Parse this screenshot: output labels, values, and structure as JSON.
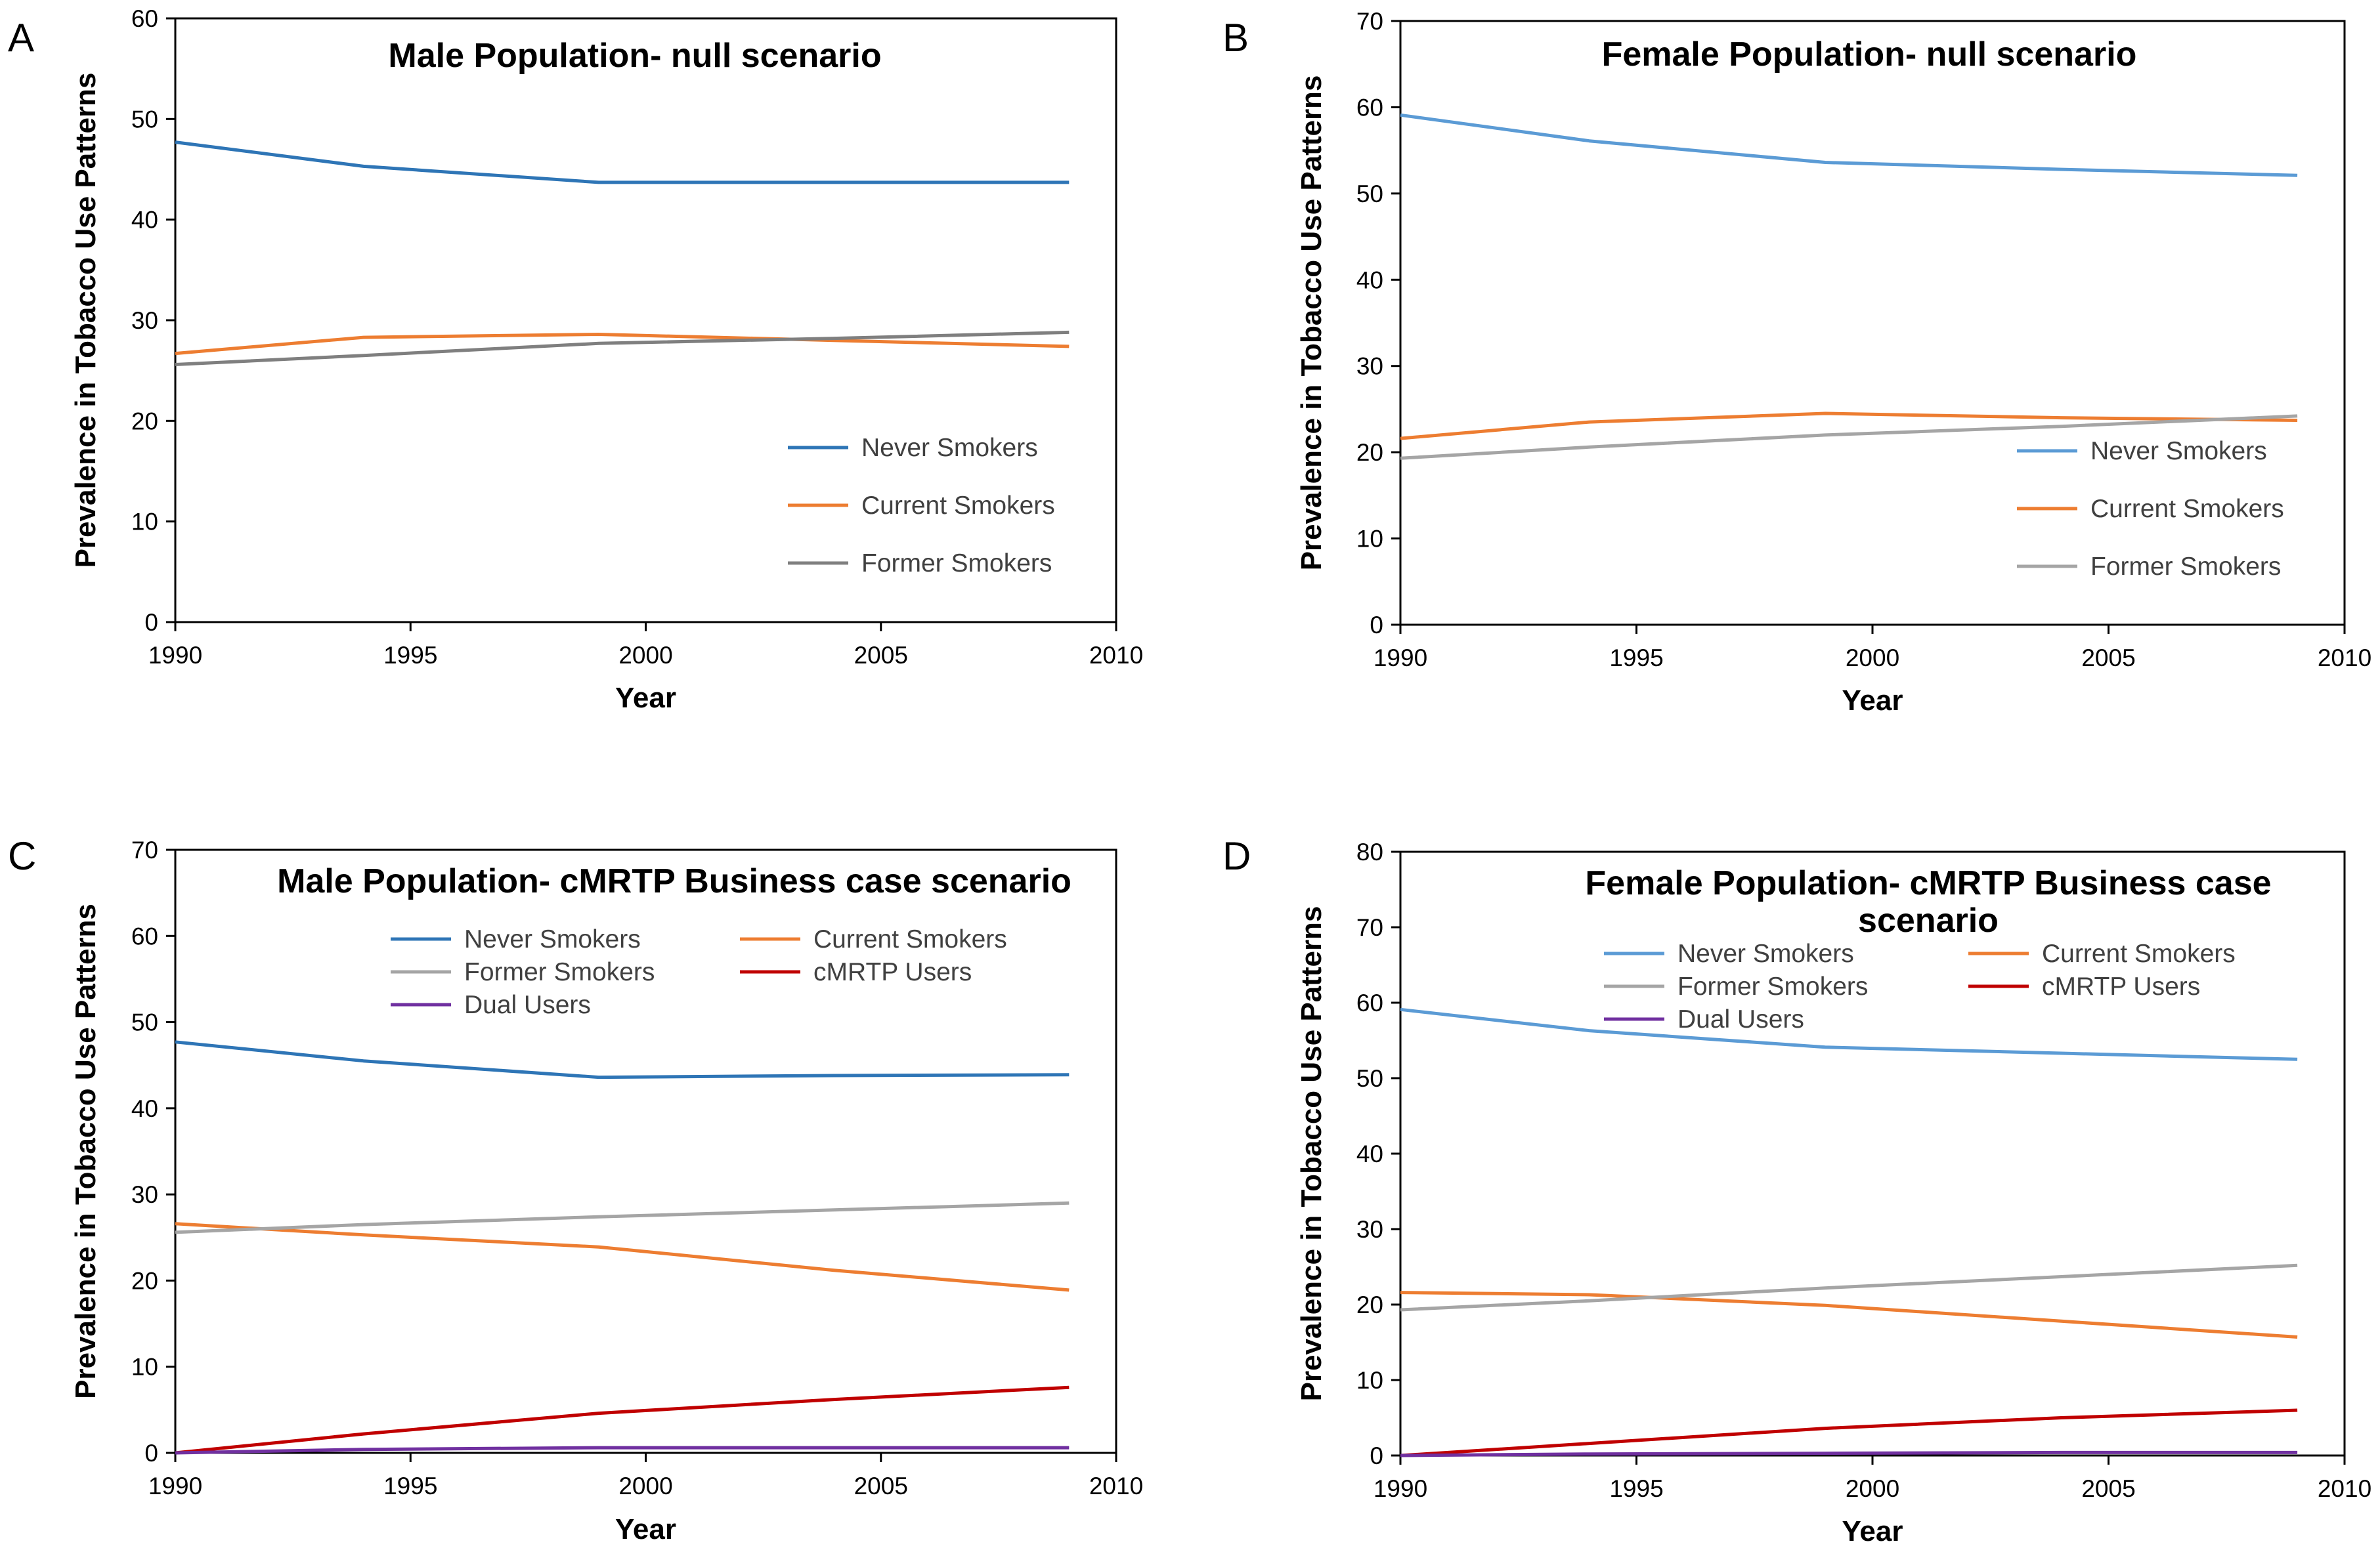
{
  "chart_data": [
    {
      "panel": "A",
      "type": "line",
      "title": "Male Population- null scenario",
      "xlabel": "Year",
      "ylabel": "Prevalence in Tobacco Use Patterns",
      "xlim": [
        1990,
        2010
      ],
      "ylim": [
        0,
        60
      ],
      "xticks": [
        1990,
        1995,
        2000,
        2005,
        2010
      ],
      "yticks": [
        0,
        10,
        20,
        30,
        40,
        50,
        60
      ],
      "x": [
        1990,
        1994,
        1999,
        2004,
        2009
      ],
      "series": [
        {
          "name": "Never Smokers",
          "color": "#2E75B6",
          "values": [
            47.7,
            45.3,
            43.7,
            43.7,
            43.7
          ]
        },
        {
          "name": "Current Smokers",
          "color": "#ED7D31",
          "values": [
            26.7,
            28.3,
            28.6,
            28.0,
            27.4
          ]
        },
        {
          "name": "Former Smokers",
          "color": "#7F7F7F",
          "values": [
            25.6,
            26.5,
            27.7,
            28.2,
            28.8
          ]
        }
      ]
    },
    {
      "panel": "B",
      "type": "line",
      "title": "Female Population- null scenario",
      "xlabel": "Year",
      "ylabel": "Prevalence in Tobacco Use Patterns",
      "xlim": [
        1990,
        2010
      ],
      "ylim": [
        0,
        70
      ],
      "xticks": [
        1990,
        1995,
        2000,
        2005,
        2010
      ],
      "yticks": [
        0,
        10,
        20,
        30,
        40,
        50,
        60,
        70
      ],
      "x": [
        1990,
        1994,
        1999,
        2004,
        2009
      ],
      "series": [
        {
          "name": "Never Smokers",
          "color": "#5B9BD5",
          "values": [
            59.1,
            56.1,
            53.6,
            52.8,
            52.1
          ]
        },
        {
          "name": "Current Smokers",
          "color": "#ED7D31",
          "values": [
            21.6,
            23.5,
            24.5,
            24.0,
            23.7
          ]
        },
        {
          "name": "Former Smokers",
          "color": "#A5A5A5",
          "values": [
            19.3,
            20.6,
            22.0,
            23.0,
            24.2
          ]
        }
      ]
    },
    {
      "panel": "C",
      "type": "line",
      "title": "Male Population- cMRTP Business case scenario",
      "xlabel": "Year",
      "ylabel": "Prevalence in Tobacco Use Patterns",
      "xlim": [
        1990,
        2010
      ],
      "ylim": [
        0,
        70
      ],
      "xticks": [
        1990,
        1995,
        2000,
        2005,
        2010
      ],
      "yticks": [
        0,
        10,
        20,
        30,
        40,
        50,
        60,
        70
      ],
      "x": [
        1990,
        1994,
        1999,
        2004,
        2009
      ],
      "series": [
        {
          "name": "Never Smokers",
          "color": "#2E75B6",
          "values": [
            47.7,
            45.5,
            43.6,
            43.8,
            43.9
          ]
        },
        {
          "name": "Current Smokers",
          "color": "#ED7D31",
          "values": [
            26.6,
            25.3,
            23.9,
            21.2,
            18.9
          ]
        },
        {
          "name": "Former Smokers",
          "color": "#A5A5A5",
          "values": [
            25.6,
            26.5,
            27.4,
            28.2,
            29.0
          ]
        },
        {
          "name": "cMRTP Users",
          "color": "#C00000",
          "values": [
            0.0,
            2.2,
            4.6,
            6.2,
            7.6
          ]
        },
        {
          "name": "Dual Users",
          "color": "#7030A0",
          "values": [
            0.0,
            0.4,
            0.6,
            0.6,
            0.6
          ]
        }
      ]
    },
    {
      "panel": "D",
      "type": "line",
      "title": "Female Population- cMRTP Business case scenario",
      "xlabel": "Year",
      "ylabel": "Prevalence in Tobacco Use Patterns",
      "xlim": [
        1990,
        2010
      ],
      "ylim": [
        0,
        80
      ],
      "xticks": [
        1990,
        1995,
        2000,
        2005,
        2010
      ],
      "yticks": [
        0,
        10,
        20,
        30,
        40,
        50,
        60,
        70,
        80
      ],
      "x": [
        1990,
        1994,
        1999,
        2004,
        2009
      ],
      "series": [
        {
          "name": "Never Smokers",
          "color": "#5B9BD5",
          "values": [
            59.1,
            56.3,
            54.1,
            53.3,
            52.5
          ]
        },
        {
          "name": "Current Smokers",
          "color": "#ED7D31",
          "values": [
            21.6,
            21.3,
            19.9,
            17.8,
            15.7
          ]
        },
        {
          "name": "Former Smokers",
          "color": "#A5A5A5",
          "values": [
            19.3,
            20.5,
            22.2,
            23.7,
            25.2
          ]
        },
        {
          "name": "cMRTP Users",
          "color": "#C00000",
          "values": [
            0.0,
            1.6,
            3.6,
            5.0,
            6.0
          ]
        },
        {
          "name": "Dual Users",
          "color": "#7030A0",
          "values": [
            0.0,
            0.2,
            0.3,
            0.4,
            0.4
          ]
        }
      ]
    }
  ]
}
